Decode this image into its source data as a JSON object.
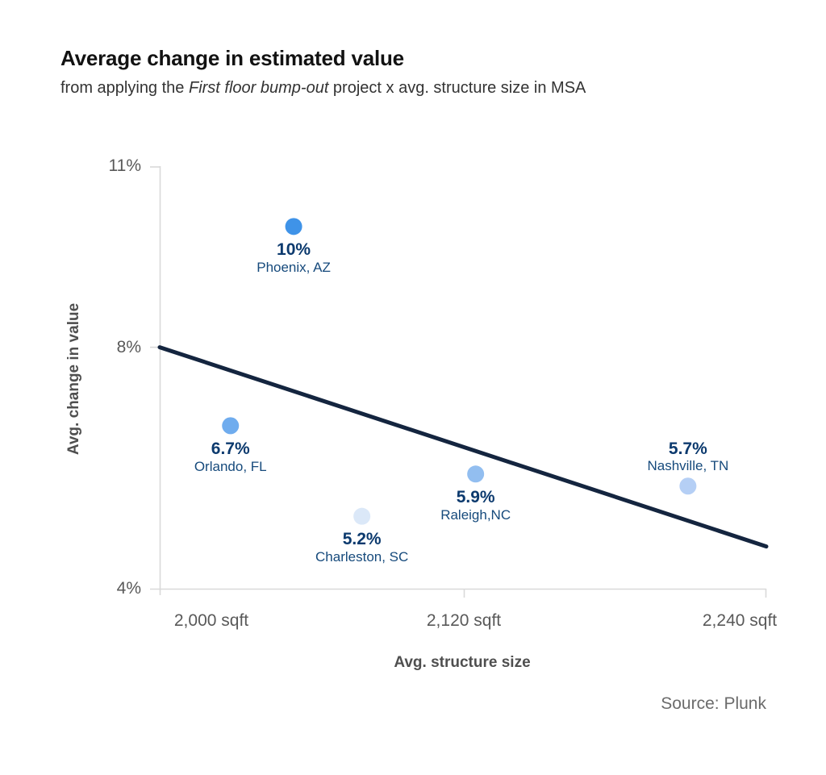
{
  "header": {
    "title": "Average change in estimated value",
    "subtitle_prefix": "from applying the ",
    "subtitle_italic": "First floor bump-out",
    "subtitle_suffix": " project x avg. structure size in MSA"
  },
  "chart_data": {
    "type": "scatter",
    "title": "Average change in estimated value",
    "xlabel": "Avg. structure size",
    "ylabel": "Avg. change in value",
    "x_unit": "sqft",
    "y_unit": "%",
    "xlim": [
      2000,
      2240
    ],
    "ylim": [
      4,
      11
    ],
    "grid": false,
    "legend": false,
    "x_ticks": [
      {
        "value": 2000,
        "label": "2,000 sqft"
      },
      {
        "value": 2120,
        "label": "2,120 sqft"
      },
      {
        "value": 2240,
        "label": "2,240 sqft"
      }
    ],
    "y_ticks": [
      {
        "value": 11,
        "label": "11%"
      },
      {
        "value": 8,
        "label": "8%"
      },
      {
        "value": 4,
        "label": "4%"
      }
    ],
    "points": [
      {
        "city": "Phoenix, AZ",
        "value_label": "10%",
        "pct": 10.0,
        "sqft": 2053,
        "color": "#3F93E8",
        "label_position": "below"
      },
      {
        "city": "Orlando, FL",
        "value_label": "6.7%",
        "pct": 6.7,
        "sqft": 2028,
        "color": "#6FACEE",
        "label_position": "below"
      },
      {
        "city": "Charleston, SC",
        "value_label": "5.2%",
        "pct": 5.2,
        "sqft": 2080,
        "color": "#DBE8F8",
        "label_position": "below"
      },
      {
        "city": "Raleigh,NC",
        "value_label": "5.9%",
        "pct": 5.9,
        "sqft": 2125,
        "color": "#92BEF0",
        "label_position": "below"
      },
      {
        "city": "Nashville, TN",
        "value_label": "5.7%",
        "pct": 5.7,
        "sqft": 2209,
        "color": "#B5CFF5",
        "label_position": "above"
      }
    ],
    "trend_line": {
      "x1": 2000,
      "y1": 8.0,
      "x2": 2240,
      "y2": 4.7,
      "color": "#14253F"
    }
  },
  "colors": {
    "point_value_label": "#0C3A6E",
    "point_city_label": "#164A7C",
    "axis": "#D9D9D9",
    "tick_label": "#595959",
    "axis_title": "#4F4F4F",
    "source": "#6B6B6B"
  },
  "footer": {
    "source": "Source: Plunk"
  }
}
